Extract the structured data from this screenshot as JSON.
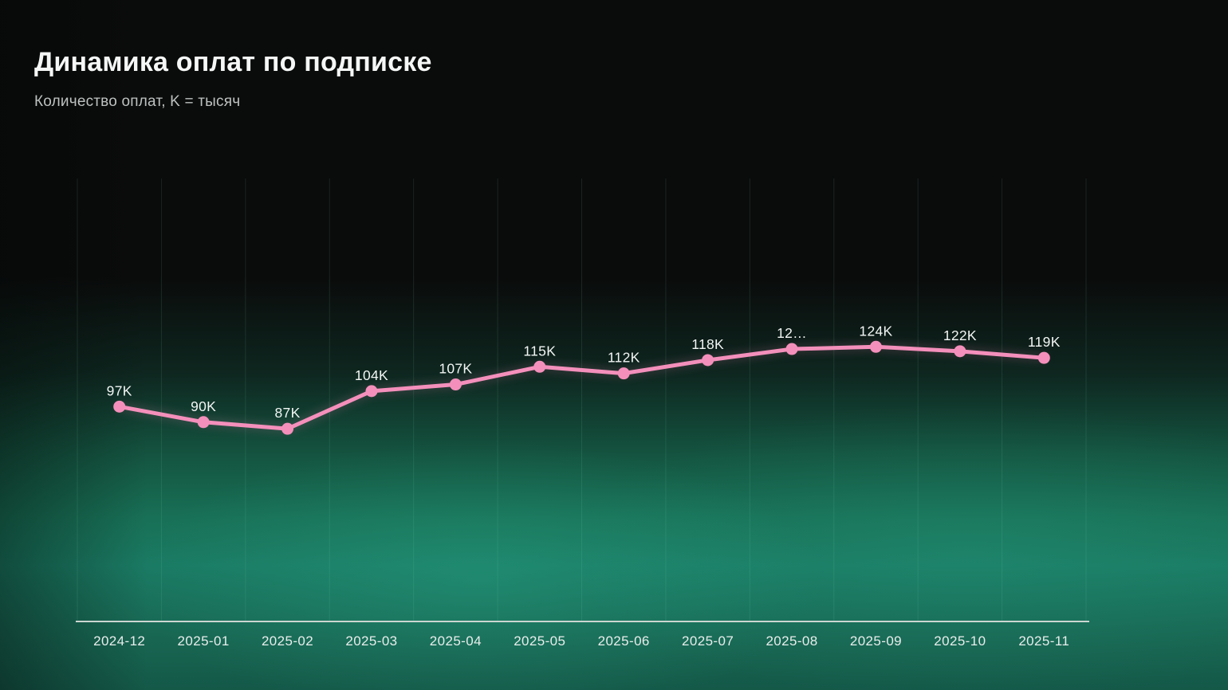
{
  "chart_data": {
    "type": "line",
    "title": "Динамика оплат по подписке",
    "subtitle": "Количество оплат, K = тысяч",
    "categories": [
      "2024-12",
      "2025-01",
      "2025-02",
      "2025-03",
      "2025-04",
      "2025-05",
      "2025-06",
      "2025-07",
      "2025-08",
      "2025-09",
      "2025-10",
      "2025-11"
    ],
    "values": [
      97,
      90,
      87,
      104,
      107,
      115,
      112,
      118,
      123,
      124,
      122,
      119
    ],
    "point_labels": [
      "97K",
      "90K",
      "87K",
      "104K",
      "107K",
      "115K",
      "112K",
      "118K",
      "12…",
      "124K",
      "122K",
      "119K"
    ],
    "unit": "K = тысяч",
    "xlabel": "",
    "ylabel": "Количество оплат",
    "ylim": [
      0,
      200
    ],
    "grid": "vertical",
    "legend": "none",
    "colors": {
      "line": "#f48fbb",
      "point": "#f48fbb",
      "point_label": "#f3f6f5",
      "axis_line": "#ccd6d1",
      "tick_label": "#e9eeec",
      "grid_line": "rgba(134,214,183,0.13)",
      "background": "#0a0b0b",
      "glow_teal": "#1a7a63",
      "title": "#f5f7f6",
      "subtitle": "#bdc2c0"
    }
  }
}
